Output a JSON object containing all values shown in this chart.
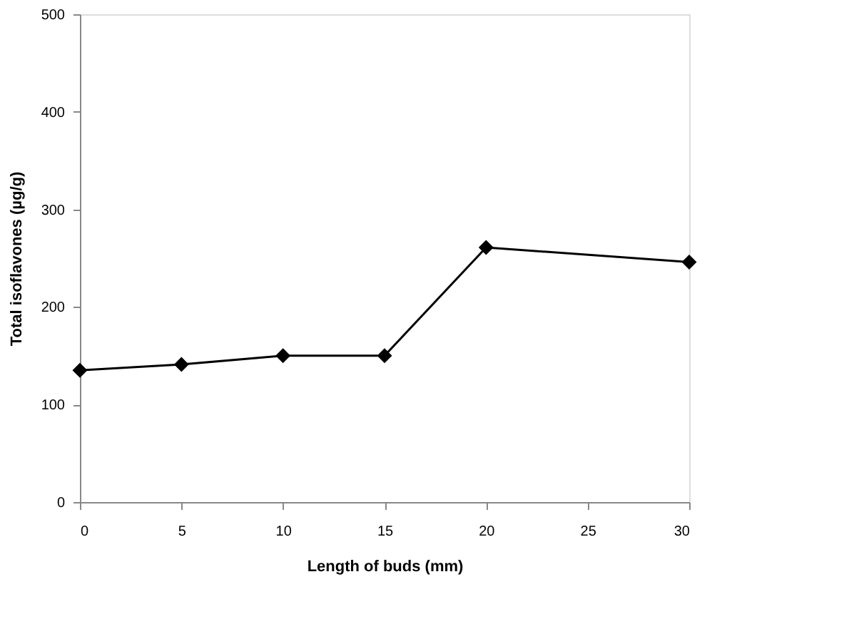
{
  "chart_data": {
    "type": "line",
    "xlabel": "Length of buds (mm)",
    "ylabel": "Total isoflavones (µg/g)",
    "x": [
      0,
      5,
      10,
      15,
      20,
      30
    ],
    "series": [
      {
        "color": "#000000",
        "values": [
          135,
          141,
          150,
          150,
          261,
          246
        ]
      }
    ],
    "xlim": [
      0,
      30
    ],
    "xticks": [
      0,
      5,
      10,
      15,
      20,
      25,
      30
    ],
    "ylim": [
      0,
      500
    ],
    "yticks": [
      0,
      100,
      200,
      300,
      400,
      500
    ],
    "grid": false,
    "marker": "diamond",
    "line_style": "solid"
  }
}
